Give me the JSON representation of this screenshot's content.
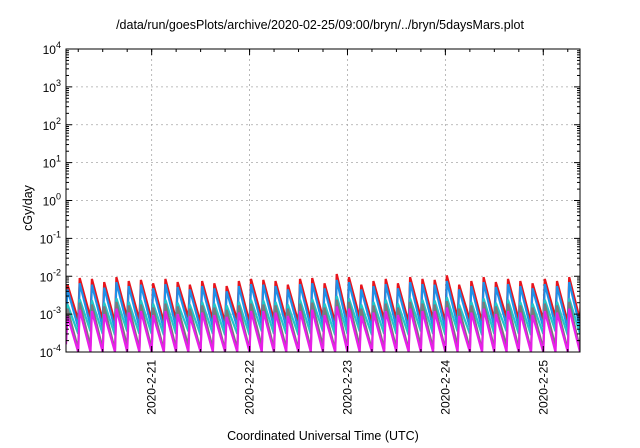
{
  "chart_data": {
    "type": "line",
    "title": "/data/run/goesPlots/archive/2020-02-25/09:00/bryn/../bryn/5daysMars.plot",
    "xlabel": "Coordinated Universal Time (UTC)",
    "ylabel": "cGy/day",
    "yscale": "log",
    "ylim": [
      0.0001,
      10000
    ],
    "xlim": [
      "2020-02-20T03:00",
      "2020-02-25T09:00"
    ],
    "y_ticks": [
      {
        "value": 0.0001,
        "base": "10",
        "exp": "-4"
      },
      {
        "value": 0.001,
        "base": "10",
        "exp": "-3"
      },
      {
        "value": 0.01,
        "base": "10",
        "exp": "-2"
      },
      {
        "value": 0.1,
        "base": "10",
        "exp": "-1"
      },
      {
        "value": 1,
        "base": "10",
        "exp": "0"
      },
      {
        "value": 10,
        "base": "10",
        "exp": "1"
      },
      {
        "value": 100,
        "base": "10",
        "exp": "2"
      },
      {
        "value": 1000,
        "base": "10",
        "exp": "3"
      },
      {
        "value": 10000,
        "base": "10",
        "exp": "4"
      }
    ],
    "x_ticks": [
      {
        "value": "2020-02-21T00:00",
        "label": "2020-2-21"
      },
      {
        "value": "2020-02-22T00:00",
        "label": "2020-2-22"
      },
      {
        "value": "2020-02-23T00:00",
        "label": "2020-2-23"
      },
      {
        "value": "2020-02-24T00:00",
        "label": "2020-2-24"
      },
      {
        "value": "2020-02-25T00:00",
        "label": "2020-2-25"
      }
    ],
    "grid": true,
    "series_period_hours": 3,
    "series": [
      {
        "color": "#e8141c",
        "x": [
          "2020-02-20T03:00",
          "2020-02-20T06:00",
          "2020-02-20T09:00",
          "2020-02-20T12:00",
          "2020-02-20T15:00",
          "2020-02-20T18:00",
          "2020-02-20T21:00",
          "2020-02-21T00:00",
          "2020-02-21T03:00",
          "2020-02-21T06:00",
          "2020-02-21T09:00",
          "2020-02-21T12:00",
          "2020-02-21T15:00",
          "2020-02-21T18:00",
          "2020-02-21T21:00",
          "2020-02-22T00:00",
          "2020-02-22T03:00",
          "2020-02-22T06:00",
          "2020-02-22T09:00",
          "2020-02-22T12:00",
          "2020-02-22T15:00",
          "2020-02-22T18:00",
          "2020-02-22T21:00",
          "2020-02-23T00:00",
          "2020-02-23T03:00",
          "2020-02-23T06:00",
          "2020-02-23T09:00",
          "2020-02-23T12:00",
          "2020-02-23T15:00",
          "2020-02-23T18:00",
          "2020-02-23T21:00",
          "2020-02-24T00:00",
          "2020-02-24T03:00",
          "2020-02-24T06:00",
          "2020-02-24T09:00",
          "2020-02-24T12:00",
          "2020-02-24T15:00",
          "2020-02-24T18:00",
          "2020-02-24T21:00",
          "2020-02-25T00:00",
          "2020-02-25T03:00",
          "2020-02-25T06:00",
          "2020-02-25T09:00"
        ],
        "peaks": [
          0.006,
          0.009,
          0.0085,
          0.007,
          0.0095,
          0.0075,
          0.008,
          0.0065,
          0.0085,
          0.007,
          0.006,
          0.0075,
          0.0065,
          0.0055,
          0.0075,
          0.0085,
          0.008,
          0.0075,
          0.006,
          0.0085,
          0.009,
          0.0065,
          0.0115,
          0.0095,
          0.006,
          0.0075,
          0.0085,
          0.0065,
          0.0095,
          0.0085,
          0.008,
          0.0105,
          0.006,
          0.0075,
          0.0095,
          0.007,
          0.0085,
          0.0075,
          0.0065,
          0.0085,
          0.0075,
          0.0095,
          0.0085
        ],
        "troughs": [
          0.0007,
          0.0008,
          0.0007,
          0.0006,
          0.0008,
          0.0007,
          0.0007,
          0.0006,
          0.0007,
          0.0008,
          0.0006,
          0.0007,
          0.0006,
          0.0007,
          0.0006,
          0.0008,
          0.0007,
          0.0007,
          0.0006,
          0.0007,
          0.0008,
          0.0006,
          0.0007,
          0.0008,
          0.0006,
          0.0007,
          0.0007,
          0.0006,
          0.0008,
          0.0007,
          0.0006,
          0.0008,
          0.0007,
          0.0006,
          0.0007,
          0.0008,
          0.0007,
          0.0006,
          0.0007,
          0.0008,
          0.0006,
          0.0007,
          0.0007
        ]
      },
      {
        "color": "#1e90e8",
        "x": [
          "2020-02-20T03:00",
          "2020-02-20T06:00",
          "2020-02-20T09:00",
          "2020-02-20T12:00",
          "2020-02-20T15:00",
          "2020-02-20T18:00",
          "2020-02-20T21:00",
          "2020-02-21T00:00",
          "2020-02-21T03:00",
          "2020-02-21T06:00",
          "2020-02-21T09:00",
          "2020-02-21T12:00",
          "2020-02-21T15:00",
          "2020-02-21T18:00",
          "2020-02-21T21:00",
          "2020-02-22T00:00",
          "2020-02-22T03:00",
          "2020-02-22T06:00",
          "2020-02-22T09:00",
          "2020-02-22T12:00",
          "2020-02-22T15:00",
          "2020-02-22T18:00",
          "2020-02-22T21:00",
          "2020-02-23T00:00",
          "2020-02-23T03:00",
          "2020-02-23T06:00",
          "2020-02-23T09:00",
          "2020-02-23T12:00",
          "2020-02-23T15:00",
          "2020-02-23T18:00",
          "2020-02-23T21:00",
          "2020-02-24T00:00",
          "2020-02-24T03:00",
          "2020-02-24T06:00",
          "2020-02-24T09:00",
          "2020-02-24T12:00",
          "2020-02-24T15:00",
          "2020-02-24T18:00",
          "2020-02-24T21:00",
          "2020-02-25T00:00",
          "2020-02-25T03:00",
          "2020-02-25T06:00",
          "2020-02-25T09:00"
        ],
        "peaks": [
          0.0045,
          0.0065,
          0.006,
          0.005,
          0.007,
          0.0055,
          0.006,
          0.0048,
          0.0062,
          0.0052,
          0.0045,
          0.0055,
          0.0048,
          0.004,
          0.0055,
          0.0062,
          0.006,
          0.0055,
          0.0045,
          0.0062,
          0.0065,
          0.0048,
          0.008,
          0.007,
          0.0045,
          0.0055,
          0.0062,
          0.0048,
          0.007,
          0.0062,
          0.006,
          0.0075,
          0.0045,
          0.0055,
          0.007,
          0.0052,
          0.0062,
          0.0055,
          0.0048,
          0.0062,
          0.0055,
          0.007,
          0.0062
        ],
        "troughs": [
          0.00045,
          0.0005,
          0.00045,
          0.0004,
          0.0005,
          0.00045,
          0.00045,
          0.0004,
          0.00045,
          0.0005,
          0.0004,
          0.00045,
          0.0004,
          0.00045,
          0.0004,
          0.0005,
          0.00045,
          0.00045,
          0.0004,
          0.00045,
          0.0005,
          0.0004,
          0.00045,
          0.0005,
          0.0004,
          0.00045,
          0.00045,
          0.0004,
          0.0005,
          0.00045,
          0.0004,
          0.0005,
          0.00045,
          0.0004,
          0.00045,
          0.0005,
          0.00045,
          0.0004,
          0.00045,
          0.0005,
          0.0004,
          0.00045,
          0.00045
        ]
      },
      {
        "color": "#22c8c8",
        "x": [
          "2020-02-20T03:00",
          "2020-02-20T06:00",
          "2020-02-20T09:00",
          "2020-02-20T12:00",
          "2020-02-20T15:00",
          "2020-02-20T18:00",
          "2020-02-20T21:00",
          "2020-02-21T00:00",
          "2020-02-21T03:00",
          "2020-02-21T06:00",
          "2020-02-21T09:00",
          "2020-02-21T12:00",
          "2020-02-21T15:00",
          "2020-02-21T18:00",
          "2020-02-21T21:00",
          "2020-02-22T00:00",
          "2020-02-22T03:00",
          "2020-02-22T06:00",
          "2020-02-22T09:00",
          "2020-02-22T12:00",
          "2020-02-22T15:00",
          "2020-02-22T18:00",
          "2020-02-22T21:00",
          "2020-02-23T00:00",
          "2020-02-23T03:00",
          "2020-02-23T06:00",
          "2020-02-23T09:00",
          "2020-02-23T12:00",
          "2020-02-23T15:00",
          "2020-02-23T18:00",
          "2020-02-23T21:00",
          "2020-02-24T00:00",
          "2020-02-24T03:00",
          "2020-02-24T06:00",
          "2020-02-24T09:00",
          "2020-02-24T12:00",
          "2020-02-24T15:00",
          "2020-02-24T18:00",
          "2020-02-24T21:00",
          "2020-02-25T00:00",
          "2020-02-25T03:00",
          "2020-02-25T06:00",
          "2020-02-25T09:00"
        ],
        "peaks": [
          0.0018,
          0.0025,
          0.0023,
          0.002,
          0.0026,
          0.0021,
          0.0023,
          0.0019,
          0.0024,
          0.002,
          0.0018,
          0.0021,
          0.0019,
          0.0017,
          0.0021,
          0.0024,
          0.0023,
          0.0021,
          0.0018,
          0.0024,
          0.0025,
          0.0019,
          0.003,
          0.0026,
          0.0018,
          0.0021,
          0.0024,
          0.0019,
          0.0026,
          0.0024,
          0.0023,
          0.0028,
          0.0018,
          0.0021,
          0.0026,
          0.002,
          0.0024,
          0.0021,
          0.0019,
          0.0024,
          0.0021,
          0.0026,
          0.0024
        ],
        "troughs": [
          0.0003,
          0.00035,
          0.0003,
          0.00028,
          0.00035,
          0.0003,
          0.0003,
          0.00028,
          0.0003,
          0.00035,
          0.00028,
          0.0003,
          0.00028,
          0.0003,
          0.00028,
          0.00035,
          0.0003,
          0.0003,
          0.00028,
          0.0003,
          0.00035,
          0.00028,
          0.0003,
          0.00035,
          0.00028,
          0.0003,
          0.0003,
          0.00028,
          0.00035,
          0.0003,
          0.00028,
          0.00035,
          0.0003,
          0.00028,
          0.0003,
          0.00035,
          0.0003,
          0.00028,
          0.0003,
          0.00035,
          0.00028,
          0.0003,
          0.0003
        ]
      },
      {
        "color": "#7a7a7a",
        "x": [
          "2020-02-20T03:00",
          "2020-02-20T06:00",
          "2020-02-20T09:00",
          "2020-02-20T12:00",
          "2020-02-20T15:00",
          "2020-02-20T18:00",
          "2020-02-20T21:00",
          "2020-02-21T00:00",
          "2020-02-21T03:00",
          "2020-02-21T06:00",
          "2020-02-21T09:00",
          "2020-02-21T12:00",
          "2020-02-21T15:00",
          "2020-02-21T18:00",
          "2020-02-21T21:00",
          "2020-02-22T00:00",
          "2020-02-22T03:00",
          "2020-02-22T06:00",
          "2020-02-22T09:00",
          "2020-02-22T12:00",
          "2020-02-22T15:00",
          "2020-02-22T18:00",
          "2020-02-22T21:00",
          "2020-02-23T00:00",
          "2020-02-23T03:00",
          "2020-02-23T06:00",
          "2020-02-23T09:00",
          "2020-02-23T12:00",
          "2020-02-23T15:00",
          "2020-02-23T18:00",
          "2020-02-23T21:00",
          "2020-02-24T00:00",
          "2020-02-24T03:00",
          "2020-02-24T06:00",
          "2020-02-24T09:00",
          "2020-02-24T12:00",
          "2020-02-24T15:00",
          "2020-02-24T18:00",
          "2020-02-24T21:00",
          "2020-02-25T00:00",
          "2020-02-25T03:00",
          "2020-02-25T06:00",
          "2020-02-25T09:00"
        ],
        "peaks": [
          0.0014,
          0.002,
          0.0018,
          0.0016,
          0.0021,
          0.0017,
          0.0018,
          0.0015,
          0.0019,
          0.0016,
          0.0014,
          0.0017,
          0.0015,
          0.0013,
          0.0017,
          0.0019,
          0.0018,
          0.0017,
          0.0014,
          0.0019,
          0.002,
          0.0015,
          0.0024,
          0.0021,
          0.0014,
          0.0017,
          0.0019,
          0.0015,
          0.0021,
          0.0019,
          0.0018,
          0.0022,
          0.0014,
          0.0017,
          0.0021,
          0.0016,
          0.0019,
          0.0017,
          0.0015,
          0.0019,
          0.0017,
          0.0021,
          0.0019
        ],
        "troughs": [
          0.00012,
          0.00014,
          0.00012,
          0.00011,
          0.00014,
          0.00012,
          0.00012,
          0.00011,
          0.00012,
          0.00014,
          0.00011,
          0.00012,
          0.00011,
          0.00012,
          0.00011,
          0.00014,
          0.00012,
          0.00012,
          0.00011,
          0.00012,
          0.00014,
          0.00011,
          0.00012,
          0.00014,
          0.00011,
          0.00012,
          0.00012,
          0.00011,
          0.00014,
          0.00012,
          0.00011,
          0.00014,
          0.00012,
          0.00011,
          0.00012,
          0.00014,
          0.00012,
          0.00011,
          0.00012,
          0.00014,
          0.00011,
          0.00012,
          0.00012
        ]
      },
      {
        "color": "#e81ee8",
        "x": [
          "2020-02-20T03:00",
          "2020-02-20T06:00",
          "2020-02-20T09:00",
          "2020-02-20T12:00",
          "2020-02-20T15:00",
          "2020-02-20T18:00",
          "2020-02-20T21:00",
          "2020-02-21T00:00",
          "2020-02-21T03:00",
          "2020-02-21T06:00",
          "2020-02-21T09:00",
          "2020-02-21T12:00",
          "2020-02-21T15:00",
          "2020-02-21T18:00",
          "2020-02-21T21:00",
          "2020-02-22T00:00",
          "2020-02-22T03:00",
          "2020-02-22T06:00",
          "2020-02-22T09:00",
          "2020-02-22T12:00",
          "2020-02-22T15:00",
          "2020-02-22T18:00",
          "2020-02-22T21:00",
          "2020-02-23T00:00",
          "2020-02-23T03:00",
          "2020-02-23T06:00",
          "2020-02-23T09:00",
          "2020-02-23T12:00",
          "2020-02-23T15:00",
          "2020-02-23T18:00",
          "2020-02-23T21:00",
          "2020-02-24T00:00",
          "2020-02-24T03:00",
          "2020-02-24T06:00",
          "2020-02-24T09:00",
          "2020-02-24T12:00",
          "2020-02-24T15:00",
          "2020-02-24T18:00",
          "2020-02-24T21:00",
          "2020-02-25T00:00",
          "2020-02-25T03:00",
          "2020-02-25T06:00",
          "2020-02-25T09:00"
        ],
        "peaks": [
          0.0009,
          0.0013,
          0.0012,
          0.001,
          0.0014,
          0.0011,
          0.0012,
          0.00095,
          0.0012,
          0.001,
          0.0009,
          0.0011,
          0.00095,
          0.00085,
          0.0011,
          0.0012,
          0.0012,
          0.0011,
          0.0009,
          0.0012,
          0.0013,
          0.00095,
          0.0016,
          0.0014,
          0.0009,
          0.0011,
          0.0012,
          0.00095,
          0.0014,
          0.0012,
          0.0012,
          0.0015,
          0.0009,
          0.0011,
          0.0014,
          0.001,
          0.0012,
          0.0011,
          0.00095,
          0.0012,
          0.0011,
          0.0014,
          0.0012
        ],
        "troughs": [
          0.0001,
          0.0001,
          0.0001,
          0.0001,
          0.0001,
          0.0001,
          0.0001,
          0.0001,
          0.0001,
          0.0001,
          0.0001,
          0.0001,
          0.0001,
          0.0001,
          0.0001,
          0.0001,
          0.0001,
          0.0001,
          0.0001,
          0.0001,
          0.0001,
          0.0001,
          0.0001,
          0.0001,
          0.0001,
          0.0001,
          0.0001,
          0.0001,
          0.0001,
          0.0001,
          0.0001,
          0.0001,
          0.0001,
          0.0001,
          0.0001,
          0.0001,
          0.0001,
          0.0001,
          0.0001,
          0.0001,
          0.0001,
          0.0001,
          0.0001
        ]
      }
    ]
  }
}
